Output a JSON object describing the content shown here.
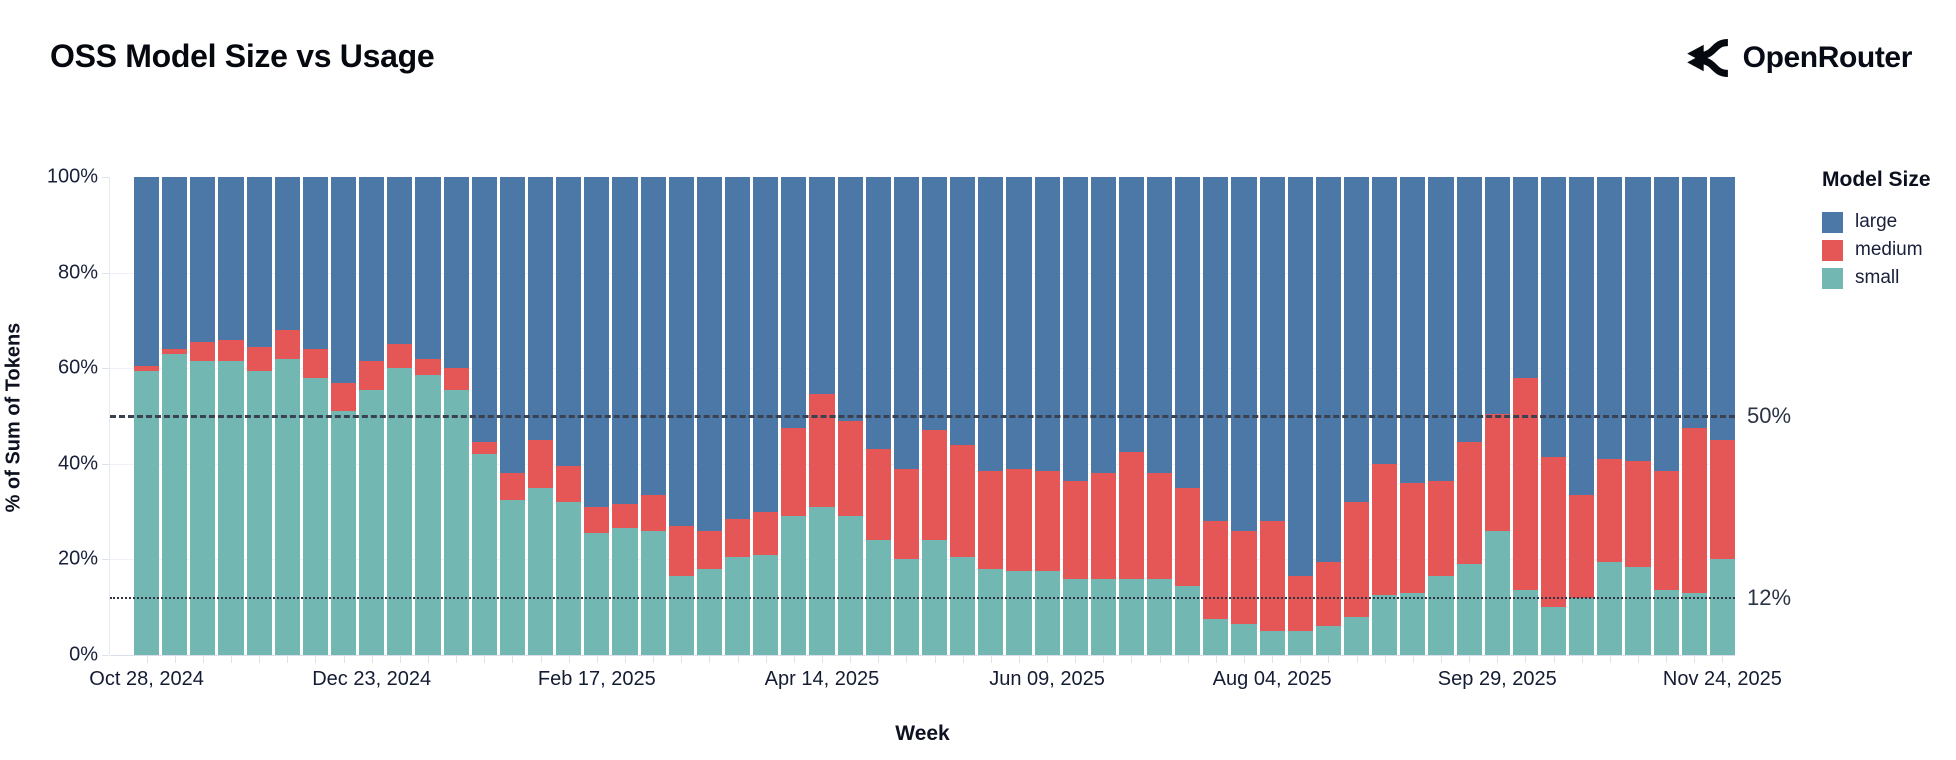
{
  "page": {
    "title": "OSS Model Size vs Usage",
    "brand": "OpenRouter"
  },
  "axis": {
    "x_title": "Week",
    "y_title": "% of Sum of Tokens"
  },
  "legend": {
    "title": "Model Size",
    "items": [
      {
        "label": "large",
        "color": "#4c78a8"
      },
      {
        "label": "medium",
        "color": "#e45756"
      },
      {
        "label": "small",
        "color": "#72b7b2"
      }
    ]
  },
  "chart_data": {
    "type": "bar",
    "stacked": true,
    "normalized_percent": true,
    "title": "OSS Model Size vs Usage",
    "xlabel": "Week",
    "ylabel": "% of Sum of Tokens",
    "legend_title": "Model Size",
    "legend_position": "right",
    "ylim": [
      0,
      100
    ],
    "grid": "subtle horizontal at 20/40/60/80",
    "y_ticks": [
      {
        "label": "100%",
        "value": 100
      },
      {
        "label": "80%",
        "value": 80
      },
      {
        "label": "60%",
        "value": 60
      },
      {
        "label": "40%",
        "value": 40
      },
      {
        "label": "20%",
        "value": 20
      },
      {
        "label": "0%",
        "value": 0
      }
    ],
    "x_tick_labels": [
      "Oct 28, 2024",
      "Dec 23, 2024",
      "Feb 17, 2025",
      "Apr 14, 2025",
      "Jun 09, 2025",
      "Aug 04, 2025",
      "Sep 29, 2025",
      "Nov 24, 2025"
    ],
    "x_tick_indices": [
      0,
      8,
      16,
      24,
      32,
      40,
      48,
      56
    ],
    "reference_lines": [
      {
        "label": "50%",
        "value": 50,
        "style": "dashed"
      },
      {
        "label": "12%",
        "value": 12,
        "style": "dotted"
      }
    ],
    "categories": [
      "2024-10-28",
      "2024-11-04",
      "2024-11-11",
      "2024-11-18",
      "2024-11-25",
      "2024-12-02",
      "2024-12-09",
      "2024-12-16",
      "2024-12-23",
      "2024-12-30",
      "2025-01-06",
      "2025-01-13",
      "2025-01-20",
      "2025-01-27",
      "2025-02-03",
      "2025-02-10",
      "2025-02-17",
      "2025-02-24",
      "2025-03-03",
      "2025-03-10",
      "2025-03-17",
      "2025-03-24",
      "2025-03-31",
      "2025-04-07",
      "2025-04-14",
      "2025-04-21",
      "2025-04-28",
      "2025-05-05",
      "2025-05-12",
      "2025-05-19",
      "2025-05-26",
      "2025-06-02",
      "2025-06-09",
      "2025-06-16",
      "2025-06-23",
      "2025-06-30",
      "2025-07-07",
      "2025-07-14",
      "2025-07-21",
      "2025-07-28",
      "2025-08-04",
      "2025-08-11",
      "2025-08-18",
      "2025-08-25",
      "2025-09-01",
      "2025-09-08",
      "2025-09-15",
      "2025-09-22",
      "2025-09-29",
      "2025-10-06",
      "2025-10-13",
      "2025-10-20",
      "2025-10-27",
      "2025-11-03",
      "2025-11-10",
      "2025-11-17",
      "2025-11-24"
    ],
    "series": [
      {
        "name": "large",
        "color": "#4c78a8",
        "values": [
          39.5,
          36,
          34.5,
          34,
          35.5,
          32,
          36,
          43,
          38.5,
          35,
          38,
          40,
          55.5,
          62,
          55,
          60.5,
          69,
          68.5,
          66.5,
          73,
          74,
          71.5,
          70,
          52.5,
          45.5,
          51,
          57,
          61,
          53,
          56,
          61.5,
          61,
          61.5,
          63.5,
          62,
          57.5,
          62,
          65,
          72,
          74,
          72,
          83.5,
          80.5,
          68,
          60,
          64,
          63.5,
          55.5,
          49.5,
          42,
          58.5,
          66.5,
          59,
          59.5,
          61.5,
          52.5,
          55
        ]
      },
      {
        "name": "medium",
        "color": "#e45756",
        "values": [
          1,
          1,
          4,
          4.5,
          5,
          6,
          6,
          6,
          6,
          5,
          3.5,
          4.5,
          2.5,
          5.5,
          10,
          7.5,
          5.5,
          5,
          7.5,
          10.5,
          8,
          8,
          9,
          18.5,
          23.5,
          20,
          19,
          19,
          23,
          23.5,
          20.5,
          21.5,
          21,
          20.5,
          22,
          26.5,
          22,
          20.5,
          20.5,
          19.5,
          23,
          11.5,
          13.5,
          24,
          27.5,
          23,
          20,
          25.5,
          24.5,
          44.5,
          31.5,
          21.5,
          21.5,
          22,
          25,
          34.5,
          25
        ]
      },
      {
        "name": "small",
        "color": "#72b7b2",
        "values": [
          59.5,
          63,
          61.5,
          61.5,
          59.5,
          62,
          58,
          51,
          55.5,
          60,
          58.5,
          55.5,
          42,
          32.5,
          35,
          32,
          25.5,
          26.5,
          26,
          16.5,
          18,
          20.5,
          21,
          29,
          31,
          29,
          24,
          20,
          24,
          20.5,
          18,
          17.5,
          17.5,
          16,
          16,
          16,
          16,
          14.5,
          7.5,
          6.5,
          5,
          5,
          6,
          8,
          12.5,
          13,
          16.5,
          19,
          26,
          13.5,
          10,
          12,
          19.5,
          18.5,
          13.5,
          13,
          20
        ]
      }
    ]
  }
}
